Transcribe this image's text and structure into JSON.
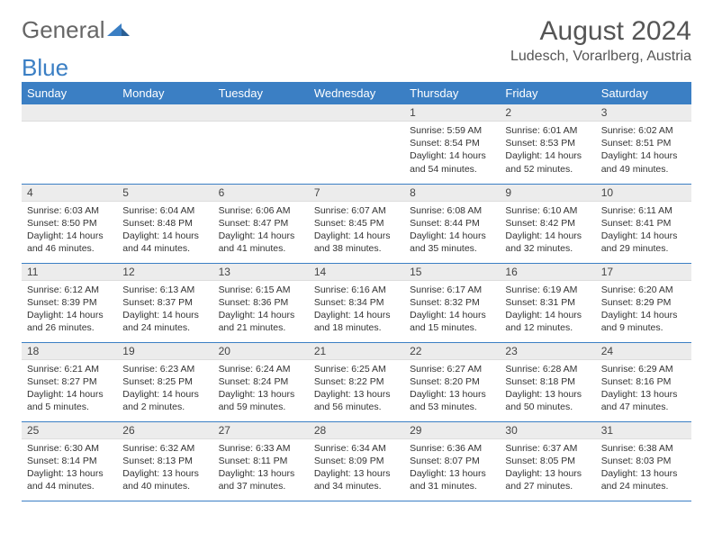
{
  "logo": {
    "word1": "General",
    "word2": "Blue"
  },
  "title": "August 2024",
  "location": "Ludesch, Vorarlberg, Austria",
  "colors": {
    "header_bg": "#3b7fc4",
    "header_text": "#ffffff",
    "daynum_bg": "#ececec",
    "border": "#3b7fc4",
    "text": "#333333",
    "logo_gray": "#666666",
    "logo_blue": "#3b7fc4"
  },
  "day_headers": [
    "Sunday",
    "Monday",
    "Tuesday",
    "Wednesday",
    "Thursday",
    "Friday",
    "Saturday"
  ],
  "weeks": [
    [
      null,
      null,
      null,
      null,
      {
        "n": "1",
        "sr": "5:59 AM",
        "ss": "8:54 PM",
        "dl": "14 hours and 54 minutes."
      },
      {
        "n": "2",
        "sr": "6:01 AM",
        "ss": "8:53 PM",
        "dl": "14 hours and 52 minutes."
      },
      {
        "n": "3",
        "sr": "6:02 AM",
        "ss": "8:51 PM",
        "dl": "14 hours and 49 minutes."
      }
    ],
    [
      {
        "n": "4",
        "sr": "6:03 AM",
        "ss": "8:50 PM",
        "dl": "14 hours and 46 minutes."
      },
      {
        "n": "5",
        "sr": "6:04 AM",
        "ss": "8:48 PM",
        "dl": "14 hours and 44 minutes."
      },
      {
        "n": "6",
        "sr": "6:06 AM",
        "ss": "8:47 PM",
        "dl": "14 hours and 41 minutes."
      },
      {
        "n": "7",
        "sr": "6:07 AM",
        "ss": "8:45 PM",
        "dl": "14 hours and 38 minutes."
      },
      {
        "n": "8",
        "sr": "6:08 AM",
        "ss": "8:44 PM",
        "dl": "14 hours and 35 minutes."
      },
      {
        "n": "9",
        "sr": "6:10 AM",
        "ss": "8:42 PM",
        "dl": "14 hours and 32 minutes."
      },
      {
        "n": "10",
        "sr": "6:11 AM",
        "ss": "8:41 PM",
        "dl": "14 hours and 29 minutes."
      }
    ],
    [
      {
        "n": "11",
        "sr": "6:12 AM",
        "ss": "8:39 PM",
        "dl": "14 hours and 26 minutes."
      },
      {
        "n": "12",
        "sr": "6:13 AM",
        "ss": "8:37 PM",
        "dl": "14 hours and 24 minutes."
      },
      {
        "n": "13",
        "sr": "6:15 AM",
        "ss": "8:36 PM",
        "dl": "14 hours and 21 minutes."
      },
      {
        "n": "14",
        "sr": "6:16 AM",
        "ss": "8:34 PM",
        "dl": "14 hours and 18 minutes."
      },
      {
        "n": "15",
        "sr": "6:17 AM",
        "ss": "8:32 PM",
        "dl": "14 hours and 15 minutes."
      },
      {
        "n": "16",
        "sr": "6:19 AM",
        "ss": "8:31 PM",
        "dl": "14 hours and 12 minutes."
      },
      {
        "n": "17",
        "sr": "6:20 AM",
        "ss": "8:29 PM",
        "dl": "14 hours and 9 minutes."
      }
    ],
    [
      {
        "n": "18",
        "sr": "6:21 AM",
        "ss": "8:27 PM",
        "dl": "14 hours and 5 minutes."
      },
      {
        "n": "19",
        "sr": "6:23 AM",
        "ss": "8:25 PM",
        "dl": "14 hours and 2 minutes."
      },
      {
        "n": "20",
        "sr": "6:24 AM",
        "ss": "8:24 PM",
        "dl": "13 hours and 59 minutes."
      },
      {
        "n": "21",
        "sr": "6:25 AM",
        "ss": "8:22 PM",
        "dl": "13 hours and 56 minutes."
      },
      {
        "n": "22",
        "sr": "6:27 AM",
        "ss": "8:20 PM",
        "dl": "13 hours and 53 minutes."
      },
      {
        "n": "23",
        "sr": "6:28 AM",
        "ss": "8:18 PM",
        "dl": "13 hours and 50 minutes."
      },
      {
        "n": "24",
        "sr": "6:29 AM",
        "ss": "8:16 PM",
        "dl": "13 hours and 47 minutes."
      }
    ],
    [
      {
        "n": "25",
        "sr": "6:30 AM",
        "ss": "8:14 PM",
        "dl": "13 hours and 44 minutes."
      },
      {
        "n": "26",
        "sr": "6:32 AM",
        "ss": "8:13 PM",
        "dl": "13 hours and 40 minutes."
      },
      {
        "n": "27",
        "sr": "6:33 AM",
        "ss": "8:11 PM",
        "dl": "13 hours and 37 minutes."
      },
      {
        "n": "28",
        "sr": "6:34 AM",
        "ss": "8:09 PM",
        "dl": "13 hours and 34 minutes."
      },
      {
        "n": "29",
        "sr": "6:36 AM",
        "ss": "8:07 PM",
        "dl": "13 hours and 31 minutes."
      },
      {
        "n": "30",
        "sr": "6:37 AM",
        "ss": "8:05 PM",
        "dl": "13 hours and 27 minutes."
      },
      {
        "n": "31",
        "sr": "6:38 AM",
        "ss": "8:03 PM",
        "dl": "13 hours and 24 minutes."
      }
    ]
  ],
  "labels": {
    "sunrise": "Sunrise: ",
    "sunset": "Sunset: ",
    "daylight": "Daylight: "
  }
}
